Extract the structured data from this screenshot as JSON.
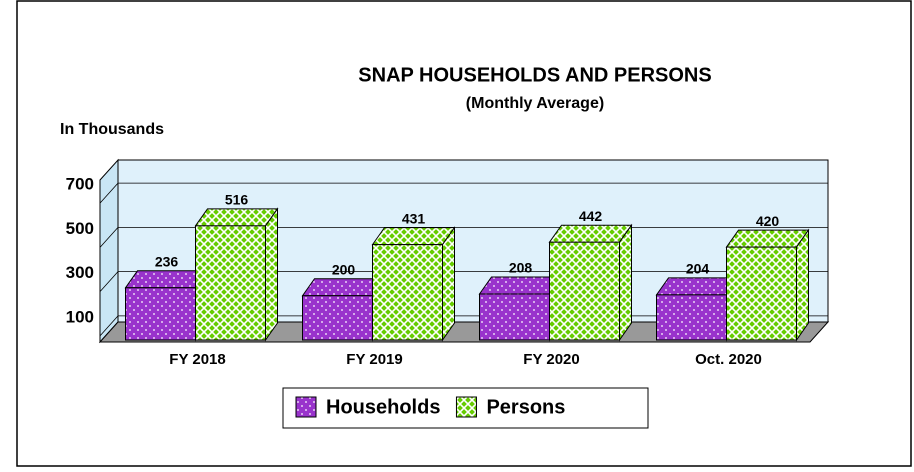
{
  "chart_data": {
    "type": "bar3d",
    "title": "SNAP HOUSEHOLDS AND PERSONS",
    "subtitle": "(Monthly Average)",
    "y_axis_label": "In Thousands",
    "categories": [
      "FY 2018",
      "FY 2019",
      "FY 2020",
      "Oct. 2020"
    ],
    "series": [
      {
        "name": "Households",
        "color": "#9933cc",
        "values": [
          236,
          200,
          208,
          204
        ]
      },
      {
        "name": "Persons",
        "color": "#66cc00",
        "values": [
          516,
          431,
          442,
          420
        ]
      }
    ],
    "ylim": [
      0,
      800
    ],
    "yticks": [
      100,
      300,
      500,
      700
    ],
    "grid": true,
    "legend": "bottom"
  }
}
